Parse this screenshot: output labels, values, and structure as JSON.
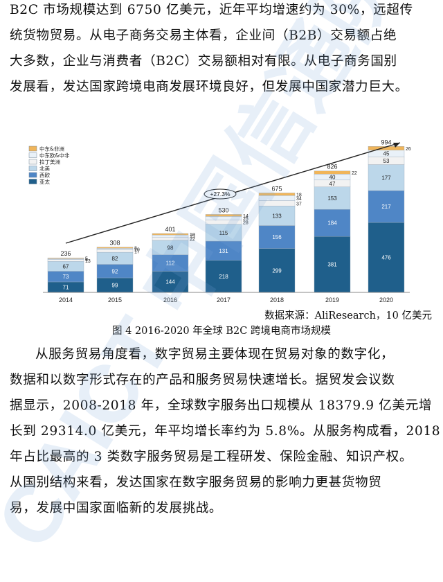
{
  "intro_lines": [
    "B2C 市场规模达到 6750 亿美元，近年平均增速约为 30%，远超传",
    "统货物贸易。从电子商务交易主体看，企业间（B2B）交易额占绝",
    "大多数，企业与消费者（B2C）交易额相对有限。从电子商务国别",
    "发展看，发达国家跨境电商发展环境良好，但发展中国家潜力巨大。"
  ],
  "source_note": "数据来源：AliResearch，10 亿美元",
  "figure_caption": "图 4 2016-2020 年全球 B2C 跨境电商市场规模",
  "body_lines": [
    "从服务贸易角度看，数字贸易主要体现在贸易对象的数字化，",
    "数据和以数字形式存在的产品和服务贸易快速增长。据贸发会议数",
    "据显示，2008-2018 年，全球数字服务出口规模从 18379.9 亿美元增",
    "长到 29314.0 亿美元，年平均增长率约为 5.8%。从服务构成看，2018",
    "年占比最高的 3 类数字服务贸易是工程研发、保险金融、知识产权。",
    "从国别结构来看，发达国家在数字服务贸易的影响力更甚货物贸",
    "易，发展中国家面临新的发展挑战。"
  ],
  "watermark_text": "CAICT 中国信通院",
  "chart_data": {
    "type": "bar",
    "stacked": true,
    "categories": [
      "2014",
      "2015",
      "2016",
      "2017",
      "2018",
      "2019",
      "2020"
    ],
    "series": [
      {
        "name": "亚太",
        "color": "#1f5f8b",
        "values": [
          71,
          99,
          144,
          218,
          299,
          381,
          476
        ]
      },
      {
        "name": "西欧",
        "color": "#4f86c6",
        "values": [
          73,
          92,
          112,
          131,
          156,
          184,
          217
        ]
      },
      {
        "name": "北美",
        "color": "#bcd7ea",
        "values": [
          67,
          82,
          98,
          115,
          133,
          153,
          177
        ]
      },
      {
        "name": "拉丁美洲",
        "color": "#f2f2f2",
        "values": [
          13,
          17,
          22,
          28,
          37,
          47,
          53
        ]
      },
      {
        "name": "中东欧&中非",
        "color": "#e9f1f8",
        "values": [
          6,
          10,
          15,
          25,
          34,
          40,
          45
        ]
      },
      {
        "name": "中东&非洲",
        "color": "#f0b55a",
        "values": [
          5,
          8,
          10,
          14,
          18,
          22,
          26
        ]
      }
    ],
    "totals": [
      236,
      308,
      401,
      530,
      675,
      826,
      994
    ],
    "cagr_label": "+27.3%",
    "ylim": [
      0,
      1000
    ],
    "legend": "top-left",
    "grid": false
  }
}
